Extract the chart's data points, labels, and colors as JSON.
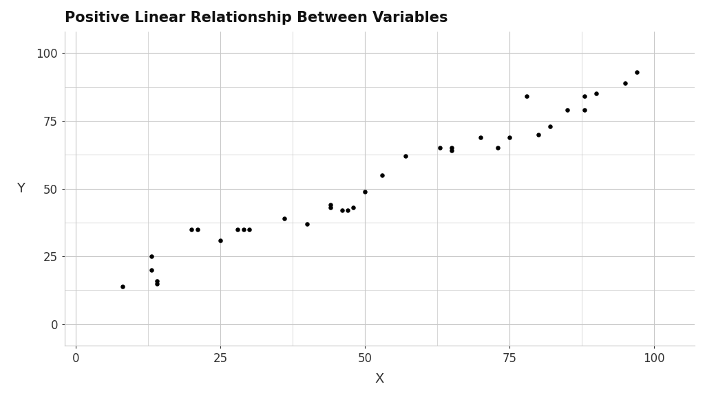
{
  "title": "Positive Linear Relationship Between Variables",
  "xlabel": "X",
  "ylabel": "Y",
  "xlim": [
    -2,
    107
  ],
  "ylim": [
    -8,
    108
  ],
  "xticks": [
    0,
    25,
    50,
    75,
    100
  ],
  "yticks": [
    0,
    25,
    50,
    75,
    100
  ],
  "background_color": "#ffffff",
  "panel_background": "#ffffff",
  "grid_color": "#c8c8c8",
  "point_color": "#000000",
  "point_size": 22,
  "title_fontsize": 15,
  "label_fontsize": 14,
  "tick_fontsize": 12,
  "x": [
    8,
    13,
    13,
    14,
    14,
    20,
    21,
    25,
    28,
    29,
    30,
    36,
    40,
    44,
    44,
    46,
    47,
    48,
    50,
    53,
    57,
    63,
    65,
    65,
    70,
    73,
    75,
    78,
    80,
    82,
    85,
    88,
    88,
    90,
    95,
    97
  ],
  "y": [
    14,
    25,
    20,
    16,
    15,
    35,
    35,
    31,
    35,
    35,
    35,
    39,
    37,
    43,
    44,
    42,
    42,
    43,
    49,
    55,
    62,
    65,
    65,
    64,
    69,
    65,
    69,
    84,
    70,
    73,
    79,
    79,
    84,
    85,
    89,
    93
  ]
}
